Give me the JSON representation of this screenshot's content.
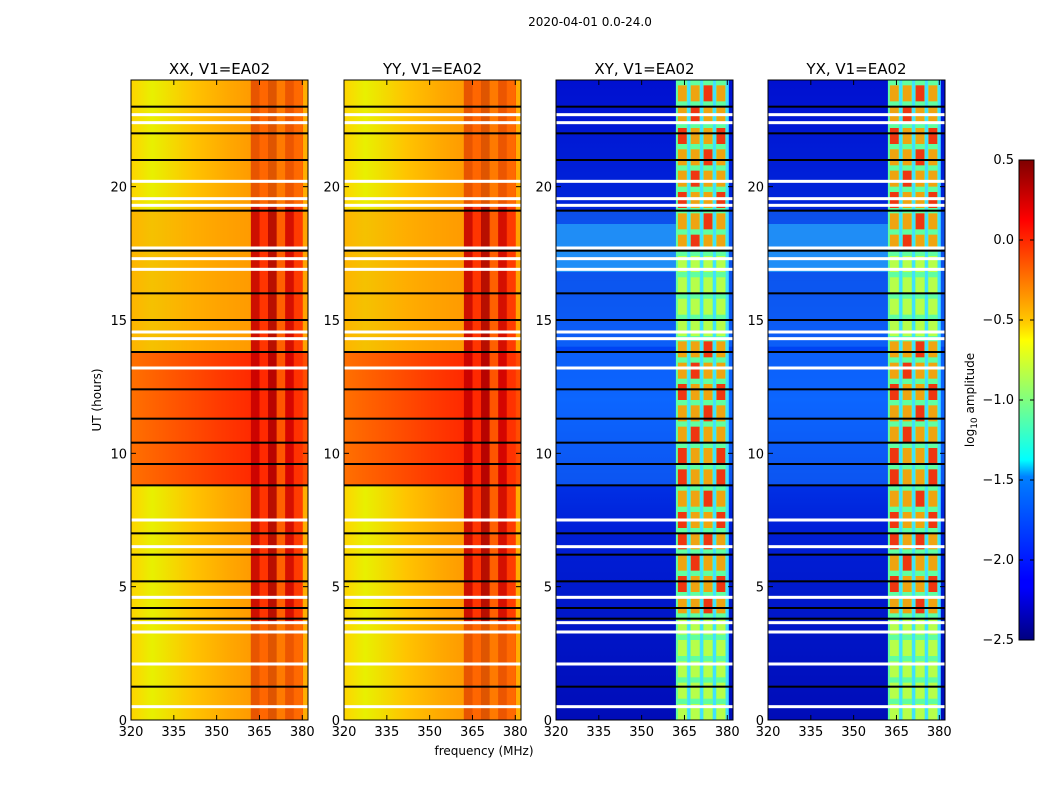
{
  "chart_data": {
    "type": "heatmap",
    "suptitle": "2020-04-01 0.0-24.0",
    "xlabel": "frequency (MHz)",
    "ylabel": "UT (hours)",
    "xlim": [
      320,
      382
    ],
    "ylim": [
      0,
      24
    ],
    "x_ticks": [
      320,
      335,
      350,
      365,
      380
    ],
    "y_ticks": [
      0,
      5,
      10,
      15,
      20
    ],
    "panels": [
      {
        "title": "XX, V1=EA02",
        "product": "XX",
        "colorscale_hint": "high"
      },
      {
        "title": "YY, V1=EA02",
        "product": "YY",
        "colorscale_hint": "high"
      },
      {
        "title": "XY, V1=EA02",
        "product": "XY",
        "colorscale_hint": "low"
      },
      {
        "title": "YX, V1=EA02",
        "product": "YX",
        "colorscale_hint": "low"
      }
    ],
    "rfi_band_mhz": [
      362,
      380
    ],
    "colorbar": {
      "label_prefix": "log",
      "label_sub": "10",
      "label_suffix": " amplitude",
      "min": -2.5,
      "max": 0.5,
      "ticks": [
        {
          "value": 0.5,
          "label": "0.5"
        },
        {
          "value": 0.0,
          "label": "0.0"
        },
        {
          "value": -0.5,
          "label": "−0.5"
        },
        {
          "value": -1.0,
          "label": "−1.0"
        },
        {
          "value": -1.5,
          "label": "−1.5"
        },
        {
          "value": -2.0,
          "label": "−2.0"
        },
        {
          "value": -2.5,
          "label": "−2.5"
        }
      ],
      "colormap": "jet"
    },
    "flagged_hours_white": [
      0.5,
      2.1,
      3.3,
      3.65,
      4.6,
      6.5,
      7.5,
      13.2,
      14.3,
      14.55,
      16.9,
      17.3,
      17.7,
      19.3,
      19.55,
      20.2,
      22.4,
      22.7
    ],
    "black_lines_hours": [
      1.25,
      3.8,
      4.2,
      5.2,
      6.2,
      7.0,
      8.8,
      9.6,
      10.4,
      11.3,
      12.4,
      13.8,
      15.0,
      16.0,
      17.6,
      19.1,
      21.0,
      22.0,
      23.0
    ]
  }
}
